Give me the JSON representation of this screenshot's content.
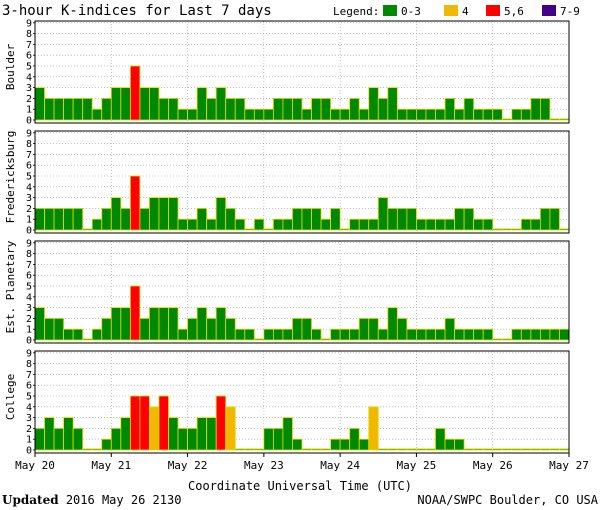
{
  "chart_data": {
    "type": "bar",
    "title": "3-hour K-indices for Last 7 days",
    "legend": {
      "label": "Legend:",
      "items": [
        {
          "label": "0-3",
          "color": "#008800"
        },
        {
          "label": "4",
          "color": "#f0b800"
        },
        {
          "label": "5,6",
          "color": "#ff0000"
        },
        {
          "label": "7-9",
          "color": "#440088"
        }
      ]
    },
    "bar_border_color": "#e0e000",
    "ylim": [
      0,
      9
    ],
    "y_ticks": [
      "0",
      "1",
      "2",
      "3",
      "4",
      "5",
      "6",
      "7",
      "8",
      "9"
    ],
    "x_ticks": [
      "May 20",
      "May 21",
      "May 22",
      "May 23",
      "May 24",
      "May 25",
      "May 26",
      "May 27"
    ],
    "xlabel": "Coordinate Universal Time (UTC)",
    "series": [
      {
        "name": "Boulder",
        "values": [
          3,
          2,
          2,
          2,
          2,
          2,
          1,
          2,
          3,
          3,
          5,
          3,
          3,
          2,
          2,
          1,
          1,
          3,
          2,
          3,
          2,
          2,
          1,
          1,
          1,
          2,
          2,
          2,
          1,
          2,
          2,
          1,
          1,
          2,
          1,
          3,
          2,
          3,
          1,
          1,
          1,
          1,
          1,
          2,
          1,
          2,
          1,
          1,
          1,
          0,
          1,
          1,
          2,
          2,
          0,
          0
        ]
      },
      {
        "name": "Fredericksburg",
        "values": [
          2,
          2,
          2,
          2,
          2,
          0,
          1,
          2,
          3,
          2,
          5,
          2,
          3,
          3,
          3,
          1,
          1,
          2,
          1,
          3,
          2,
          1,
          0,
          1,
          0,
          1,
          1,
          2,
          2,
          2,
          1,
          2,
          0,
          1,
          1,
          1,
          3,
          2,
          2,
          2,
          1,
          1,
          1,
          1,
          2,
          2,
          1,
          1,
          0,
          0,
          0,
          1,
          1,
          2,
          2,
          0
        ]
      },
      {
        "name": "Est. Planetary",
        "values": [
          3,
          2,
          2,
          1,
          1,
          0,
          1,
          2,
          3,
          3,
          5,
          2,
          3,
          3,
          3,
          1,
          2,
          3,
          2,
          3,
          2,
          1,
          1,
          0,
          1,
          1,
          1,
          2,
          2,
          1,
          0,
          1,
          1,
          1,
          2,
          2,
          1,
          3,
          2,
          1,
          1,
          1,
          1,
          2,
          1,
          1,
          1,
          1,
          0,
          0,
          1,
          1,
          1,
          1,
          1,
          1
        ]
      },
      {
        "name": "College",
        "values": [
          2,
          3,
          2,
          3,
          2,
          0,
          0,
          1,
          2,
          3,
          5,
          5,
          4,
          5,
          3,
          2,
          2,
          3,
          3,
          5,
          4,
          0,
          0,
          0,
          2,
          2,
          3,
          1,
          0,
          0,
          0,
          1,
          1,
          2,
          1,
          4,
          0,
          0,
          0,
          0,
          0,
          0,
          2,
          1,
          1,
          0,
          0,
          0,
          0,
          0,
          0,
          0,
          0,
          0,
          0,
          0
        ]
      }
    ]
  },
  "footer": {
    "updated_label": "Updated",
    "updated_value": "2016 May 26 2130",
    "credit": "NOAA/SWPC Boulder, CO USA"
  }
}
